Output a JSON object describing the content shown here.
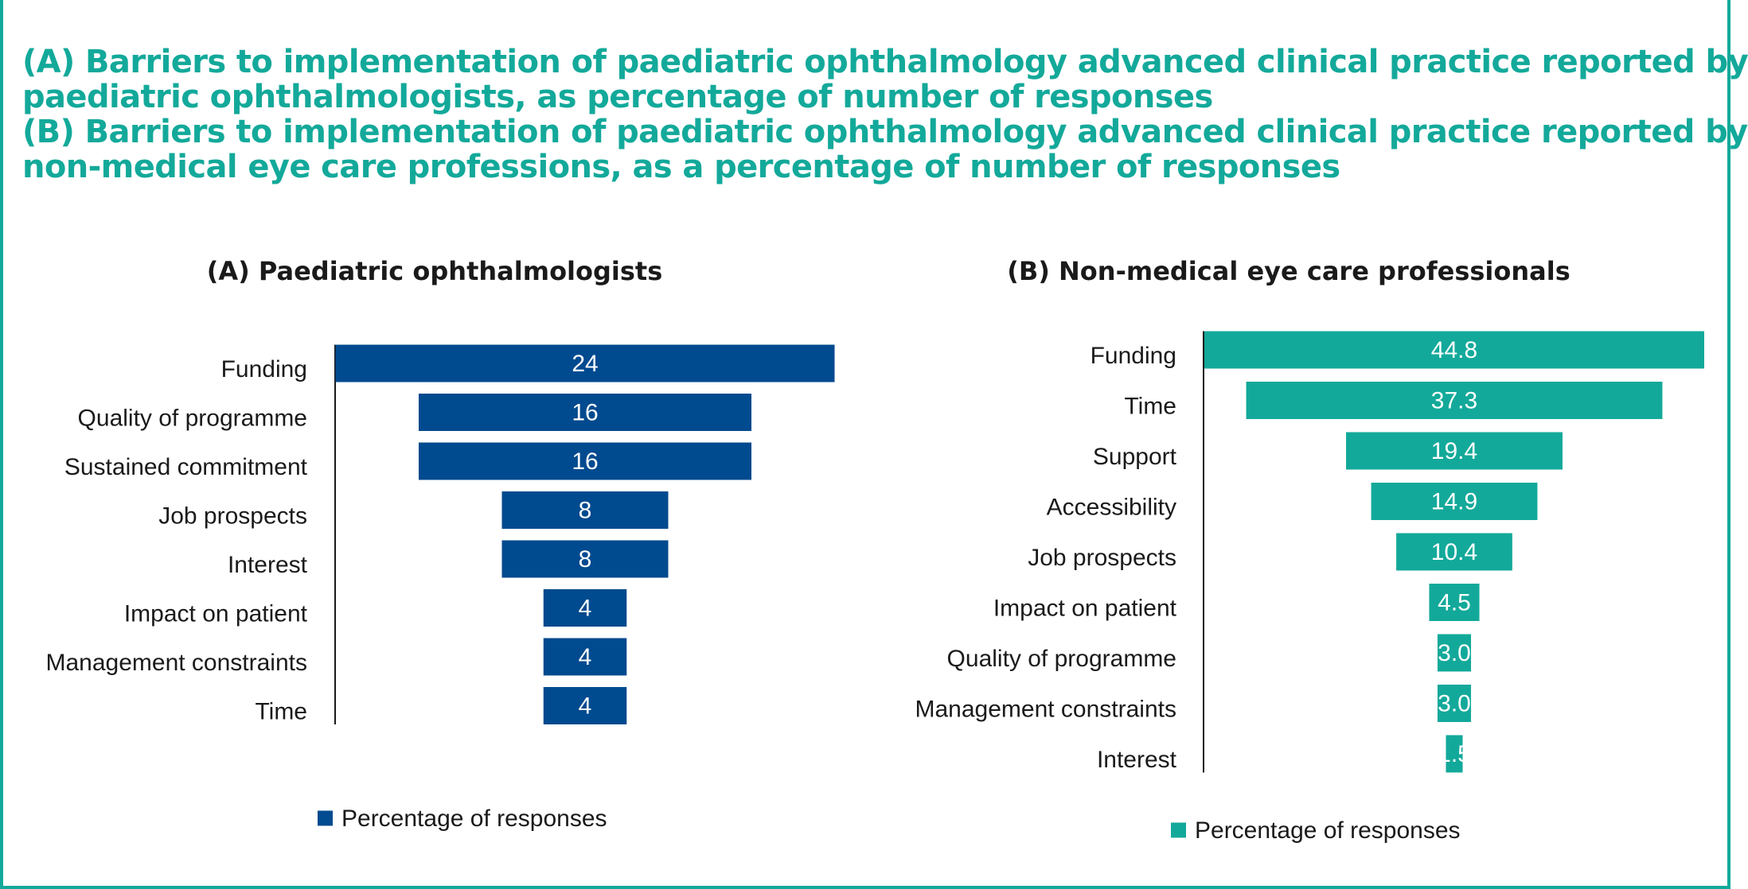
{
  "header": {
    "line1": "(A) Barriers to implementation of paediatric ophthalmology advanced clinical practice reported by",
    "line2": "paediatric ophthalmologists, as percentage of number of responses",
    "line3": "(B) Barriers to implementation of paediatric ophthalmology advanced clinical practice reported by",
    "line4": "non-medical eye care professions, as a percentage of number of responses"
  },
  "chart_data": [
    {
      "type": "bar",
      "orientation": "horizontal-centered",
      "title": "(A) Paediatric ophthalmologists",
      "categories": [
        "Funding",
        "Quality of programme",
        "Sustained commitment",
        "Job prospects",
        "Interest",
        "Impact on patient",
        "Management constraints",
        "Time"
      ],
      "series": [
        {
          "name": "Percentage of responses",
          "values": [
            24,
            16,
            16,
            8,
            8,
            4,
            4,
            4
          ]
        }
      ],
      "value_labels": [
        "24",
        "16",
        "16",
        "8",
        "8",
        "4",
        "4",
        "4"
      ],
      "color": "#004a8f",
      "legend": "bottom",
      "grid": false
    },
    {
      "type": "bar",
      "orientation": "horizontal-centered",
      "title": "(B) Non-medical eye care professionals",
      "categories": [
        "Funding",
        "Time",
        "Support",
        "Accessibility",
        "Job prospects",
        "Impact on patient",
        "Quality of programme",
        "Management constraints",
        "Interest"
      ],
      "series": [
        {
          "name": "Percentage of responses",
          "values": [
            44.8,
            37.3,
            19.4,
            14.9,
            10.4,
            4.5,
            3.0,
            3.0,
            1.5
          ]
        }
      ],
      "value_labels": [
        "44.8",
        "37.3",
        "19.4",
        "14.9",
        "10.4",
        "4.5",
        "3.0",
        "3.0",
        "1.5"
      ],
      "color": "#13a99a",
      "legend": "bottom",
      "grid": false
    }
  ]
}
